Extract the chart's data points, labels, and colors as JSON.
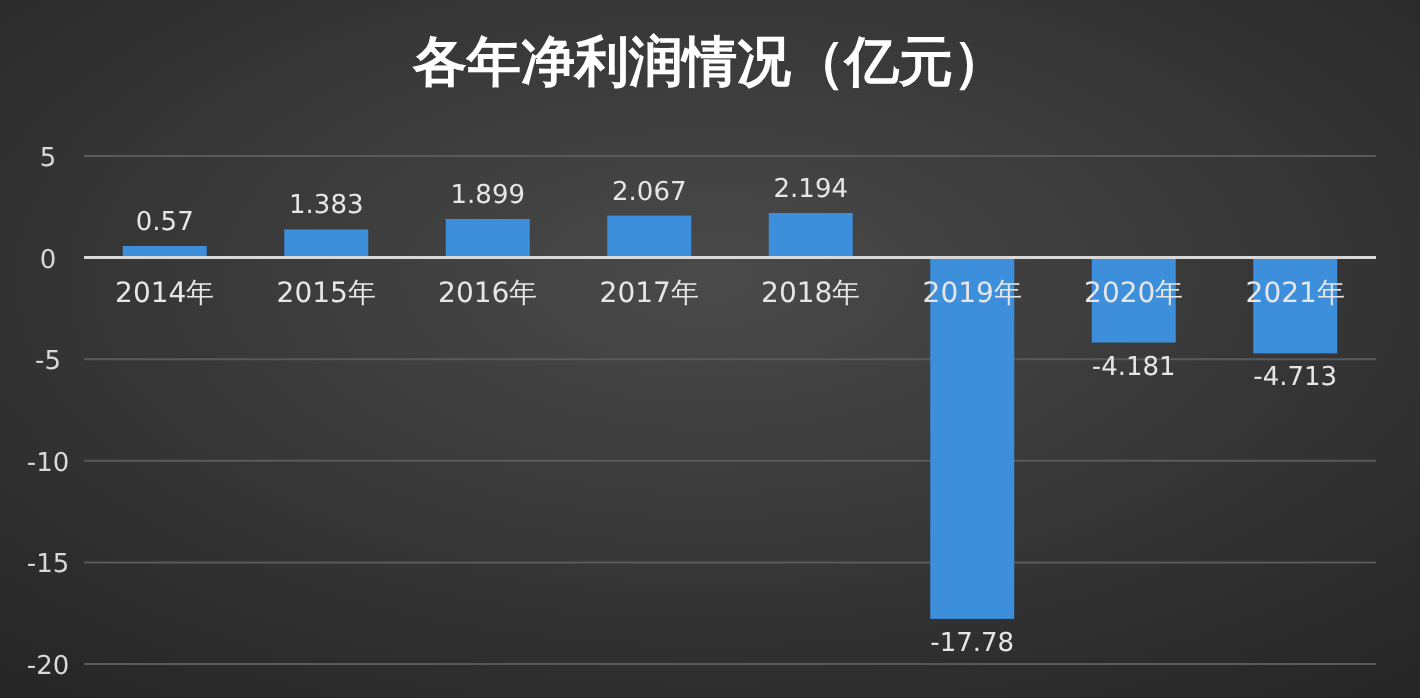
{
  "chart_data": {
    "type": "bar",
    "title": "各年净利润情况（亿元）",
    "categories": [
      "2014年",
      "2015年",
      "2016年",
      "2017年",
      "2018年",
      "2019年",
      "2020年",
      "2021年"
    ],
    "values": [
      0.57,
      1.383,
      1.899,
      2.067,
      2.194,
      -17.78,
      -4.181,
      -4.713
    ],
    "color": "#3d8fdc",
    "ylim": [
      -20,
      5
    ],
    "yticks": [
      -20,
      -15,
      -10,
      -5,
      0,
      5
    ],
    "grid": "y",
    "data_labels": true
  }
}
